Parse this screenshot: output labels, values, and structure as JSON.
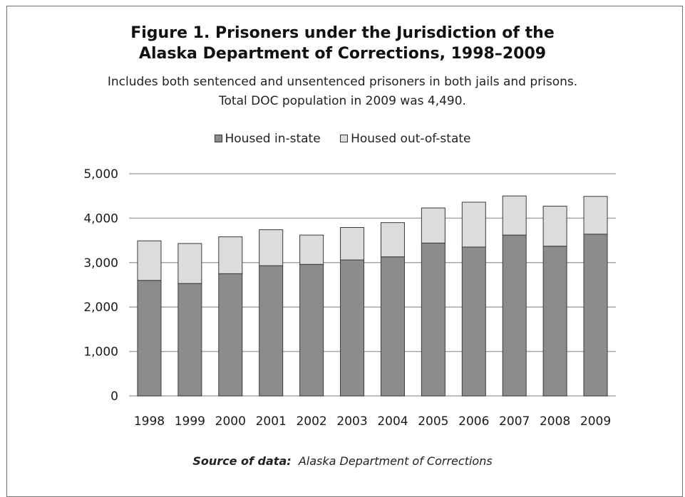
{
  "title_line1": "Figure 1. Prisoners under the Jurisdiction of the",
  "title_line2": "Alaska Department of Corrections, 1998–2009",
  "subtitle_line1": "Includes both sentenced and unsentenced prisoners in both jails and prisons.",
  "subtitle_line2": "Total DOC population in 2009 was 4,490.",
  "source_label": "Source of data:",
  "source_text": "Alaska Department of Corrections",
  "colors": {
    "in_state": "#8c8c8c",
    "out_of_state": "#dcdcdc",
    "bar_border": "#3a3a3a",
    "grid": "#a6a6a6",
    "frame": "#707070"
  },
  "chart_data": {
    "type": "bar",
    "stacked": true,
    "categories": [
      "1998",
      "1999",
      "2000",
      "2001",
      "2002",
      "2003",
      "2004",
      "2005",
      "2006",
      "2007",
      "2008",
      "2009"
    ],
    "series": [
      {
        "name": "Housed in-state",
        "values": [
          2600,
          2530,
          2750,
          2930,
          2960,
          3060,
          3130,
          3440,
          3350,
          3620,
          3370,
          3640
        ]
      },
      {
        "name": "Housed out-of-state",
        "values": [
          890,
          900,
          830,
          810,
          660,
          730,
          770,
          790,
          1010,
          880,
          900,
          850
        ]
      }
    ],
    "yticks": [
      "0",
      "1,000",
      "2,000",
      "3,000",
      "4,000",
      "5,000"
    ],
    "ylim": [
      0,
      5000
    ],
    "grid": true,
    "legend": "top-center"
  }
}
